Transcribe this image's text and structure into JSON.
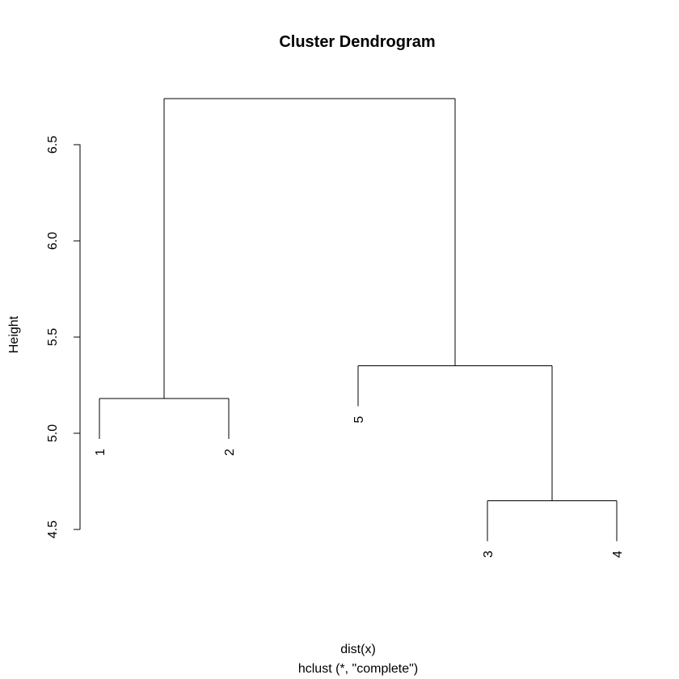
{
  "chart_data": {
    "type": "dendrogram",
    "title": "Cluster Dendrogram",
    "xlabel": "dist(x)",
    "subtitle": "hclust (*, \"complete\")",
    "ylabel": "Height",
    "ylim": [
      4.5,
      6.75
    ],
    "yticks": [
      4.5,
      5.0,
      5.5,
      6.0,
      6.5
    ],
    "ytick_labels": [
      "4.5",
      "5.0",
      "5.5",
      "6.0",
      "6.5"
    ],
    "leaf_order": [
      "1",
      "2",
      "5",
      "3",
      "4"
    ],
    "merges": [
      {
        "left": "leaf:3",
        "right": "leaf:4",
        "height": 4.65
      },
      {
        "left": "leaf:1",
        "right": "leaf:2",
        "height": 5.18
      },
      {
        "left": "leaf:5",
        "right": "node:0",
        "height": 5.35
      },
      {
        "left": "node:1",
        "right": "node:2",
        "height": 6.74
      }
    ],
    "hang_height": 0.21
  }
}
